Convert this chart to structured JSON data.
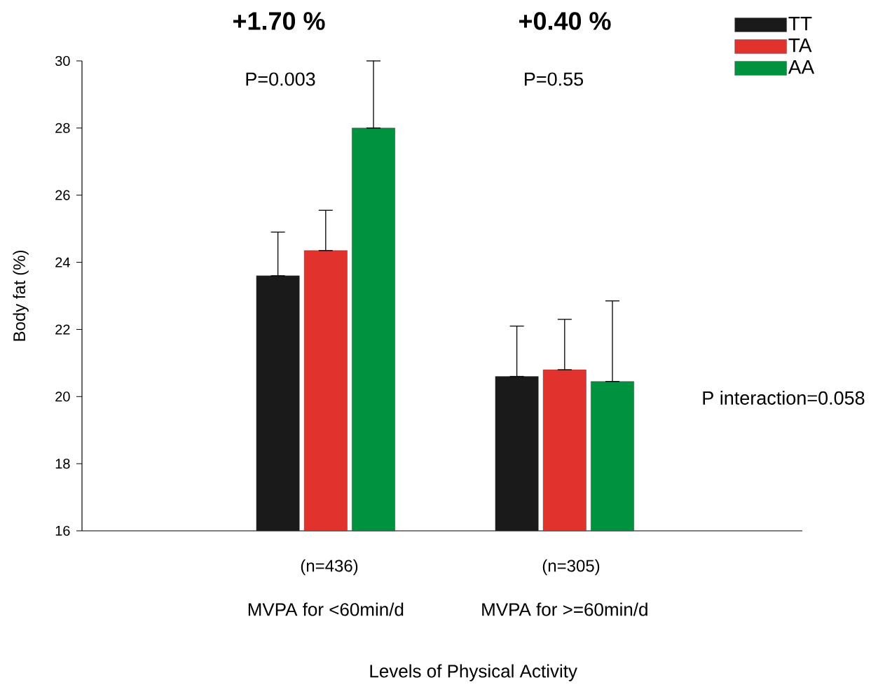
{
  "chart_data": {
    "type": "bar",
    "xlabel": "Levels of Physical Activity",
    "ylabel": "Body fat (%)",
    "categories": [
      "MVPA for <60min/d",
      "MVPA for >=60min/d"
    ],
    "series": [
      {
        "name": "TT",
        "color": "#1a1a1a",
        "values": [
          23.6,
          20.6
        ],
        "errors": [
          [
            23.6,
            24.9
          ],
          [
            20.6,
            22.1
          ]
        ]
      },
      {
        "name": "TA",
        "color": "#e2322d",
        "values": [
          24.35,
          20.8
        ],
        "errors": [
          [
            24.35,
            25.55
          ],
          [
            20.8,
            22.3
          ]
        ]
      },
      {
        "name": "AA",
        "color": "#00923f",
        "values": [
          28.0,
          20.45
        ],
        "errors": [
          [
            28.0,
            30.0
          ],
          [
            20.45,
            22.85
          ]
        ]
      }
    ],
    "ylim": [
      16,
      30
    ],
    "yticks": [
      16,
      18,
      20,
      22,
      24,
      26,
      28,
      30
    ],
    "legend": "top right",
    "grid": false,
    "annotations": [
      "+1.70 %",
      "+0.40 %",
      "P=0.003",
      "P=0.55",
      "(n=436)",
      "(n=305)",
      "P interaction=0.058"
    ]
  }
}
